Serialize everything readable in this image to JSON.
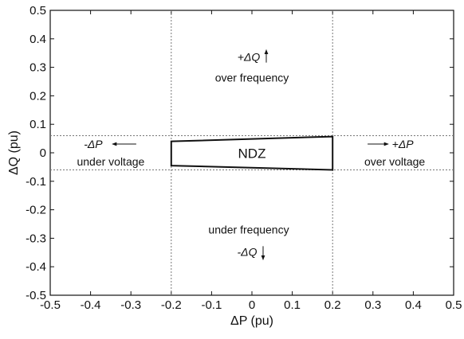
{
  "chart_data": {
    "type": "region",
    "xlabel": "ΔP (pu)",
    "ylabel": "ΔQ (pu)",
    "xlim": [
      -0.5,
      0.5
    ],
    "ylim": [
      -0.5,
      0.5
    ],
    "x_ticks": [
      "-0.5",
      "-0.4",
      "-0.3",
      "-0.2",
      "-0.1",
      "0",
      "0.1",
      "0.2",
      "0.3",
      "0.4",
      "0.5"
    ],
    "y_ticks": [
      "-0.5",
      "-0.4",
      "-0.3",
      "-0.2",
      "-0.1",
      "0",
      "0.1",
      "0.2",
      "0.3",
      "0.4",
      "0.5"
    ],
    "grid": false,
    "ndz_polygon": {
      "label": "NDZ",
      "x": [
        -0.2,
        0.2,
        0.2,
        -0.2
      ],
      "y": [
        0.04,
        0.057,
        -0.06,
        -0.045
      ]
    },
    "dashed_vertical_lines_x": [
      -0.2,
      0.2
    ],
    "dashed_horizontal_lines_y": [
      0.06,
      -0.06
    ],
    "annotations": {
      "upper": {
        "arrow_label": "+ΔQ",
        "text": "over frequency",
        "x": 0.0,
        "y": 0.3
      },
      "lower": {
        "arrow_label": "-ΔQ",
        "text": "under frequency",
        "x": 0.0,
        "y": -0.3
      },
      "left": {
        "arrow_label": "-ΔP",
        "text": "under voltage",
        "x": -0.35,
        "y": 0.0
      },
      "right": {
        "arrow_label": "+ΔP",
        "text": "over voltage",
        "x": 0.35,
        "y": 0.0
      }
    }
  }
}
